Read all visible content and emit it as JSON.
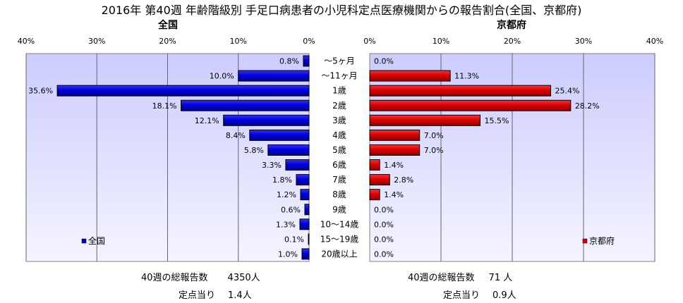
{
  "title": "2016年 第40週 年齢階級別 手足口病患者の小児科定点医療機関からの報告割合(全国、京都府)",
  "age_labels": [
    "～5ヶ月",
    "～11ヶ月",
    "1歳",
    "2歳",
    "3歳",
    "4歳",
    "5歳",
    "6歳",
    "7歳",
    "8歳",
    "9歳",
    "10～14歳",
    "15～19歳",
    "20歳以上"
  ],
  "colors": {
    "national": "#0000cc",
    "kyoto": "#dd0000",
    "plot_bg_top": "#ccccff",
    "plot_bg_bottom": "#f4f4ff"
  },
  "chart_data": [
    {
      "type": "bar",
      "orientation": "horizontal",
      "title": "全国",
      "legend": "全国",
      "legend_position": "bottom-left",
      "direction": "right-to-left",
      "categories": [
        "～5ヶ月",
        "～11ヶ月",
        "1歳",
        "2歳",
        "3歳",
        "4歳",
        "5歳",
        "6歳",
        "7歳",
        "8歳",
        "9歳",
        "10～14歳",
        "15～19歳",
        "20歳以上"
      ],
      "values": [
        0.8,
        10.0,
        35.6,
        18.1,
        12.1,
        8.4,
        5.8,
        3.3,
        1.8,
        1.2,
        0.6,
        1.3,
        0.1,
        1.0
      ],
      "value_labels": [
        "0.8%",
        "10.0%",
        "35.6%",
        "18.1%",
        "12.1%",
        "8.4%",
        "5.8%",
        "3.3%",
        "1.8%",
        "1.2%",
        "0.6%",
        "1.3%",
        "0.1%",
        "1.0%"
      ],
      "xlim": [
        0,
        40
      ],
      "ticks": [
        0,
        10,
        20,
        30,
        40
      ],
      "tick_labels": [
        "0%",
        "10%",
        "20%",
        "30%",
        "40%"
      ],
      "color": "#0000cc"
    },
    {
      "type": "bar",
      "orientation": "horizontal",
      "title": "京都府",
      "legend": "京都府",
      "legend_position": "bottom-right",
      "direction": "left-to-right",
      "categories": [
        "～5ヶ月",
        "～11ヶ月",
        "1歳",
        "2歳",
        "3歳",
        "4歳",
        "5歳",
        "6歳",
        "7歳",
        "8歳",
        "9歳",
        "10～14歳",
        "15～19歳",
        "20歳以上"
      ],
      "values": [
        0.0,
        11.3,
        25.4,
        28.2,
        15.5,
        7.0,
        7.0,
        1.4,
        2.8,
        1.4,
        0.0,
        0.0,
        0.0,
        0.0
      ],
      "value_labels": [
        "0.0%",
        "11.3%",
        "25.4%",
        "28.2%",
        "15.5%",
        "7.0%",
        "7.0%",
        "1.4%",
        "2.8%",
        "1.4%",
        "0.0%",
        "0.0%",
        "0.0%",
        "0.0%"
      ],
      "xlim": [
        0,
        40
      ],
      "ticks": [
        0,
        10,
        20,
        30,
        40
      ],
      "tick_labels": [
        "0%",
        "10%",
        "20%",
        "30%",
        "40%"
      ],
      "color": "#dd0000"
    }
  ],
  "summary": {
    "national": {
      "total_label": "40週の総報告数",
      "total_value": "4350人",
      "per_label": "定点当り",
      "per_value": "1.4人"
    },
    "kyoto": {
      "total_label": "40週の総報告数",
      "total_value": "71 人",
      "per_label": "定点当り",
      "per_value": "0.9人"
    }
  }
}
